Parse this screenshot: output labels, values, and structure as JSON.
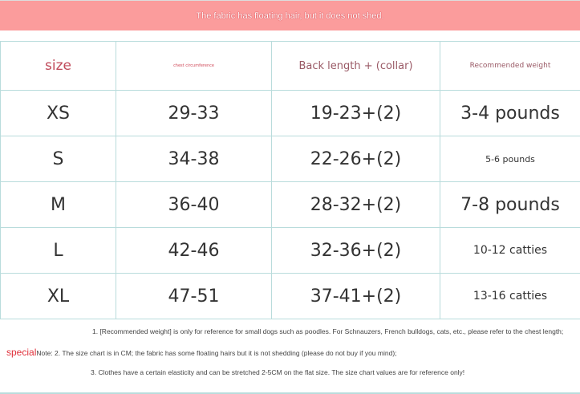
{
  "banner": "The fabric has floating hair, but it does not shed.",
  "headers": [
    "size",
    "chest circumference",
    "Back length + (collar)",
    "Recommended weight"
  ],
  "rows": [
    [
      "XS",
      "29-33",
      "19-23+(2)",
      "3-4 pounds"
    ],
    [
      "S",
      "34-38",
      "22-26+(2)",
      "5-6 pounds"
    ],
    [
      "M",
      "36-40",
      "28-32+(2)",
      "7-8 pounds"
    ],
    [
      "L",
      "42-46",
      "32-36+(2)",
      "10-12 catties"
    ],
    [
      "XL",
      "47-51",
      "37-41+(2)",
      "13-16 catties"
    ]
  ],
  "notes": {
    "special": "special",
    "note1": "1. [Recommended weight] is only for reference for small dogs such as poodles. For Schnauzers, French bulldogs, cats, etc., please refer to the chest length;",
    "note2": "Note: 2. The size chart is in CM; the fabric has some floating hairs but it is not shedding (please do not buy if you mind);",
    "note3": "3. Clothes have a certain elasticity and can be stretched 2-5CM on the flat size. The size chart values are for reference only!"
  }
}
